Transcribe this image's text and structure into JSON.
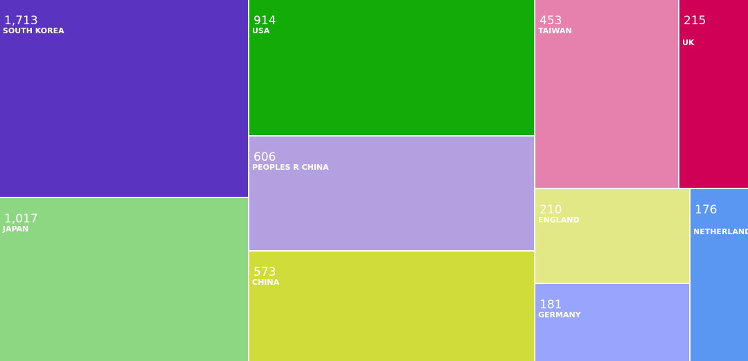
{
  "chart_data": {
    "type": "treemap",
    "categories": [
      "SOUTH KOREA",
      "JAPAN",
      "USA",
      "PEOPLES R CHINA",
      "CHINA",
      "TAIWAN",
      "UK",
      "ENGLAND",
      "GERMANY",
      "NETHERLANDS"
    ],
    "values": [
      1713,
      1017,
      914,
      606,
      573,
      453,
      215,
      210,
      181,
      176
    ],
    "value_labels": [
      "1,713",
      "1,017",
      "914",
      "606",
      "573",
      "453",
      "215",
      "210",
      "181",
      "176"
    ],
    "colors": [
      "#5b33c1",
      "#8dd783",
      "#13ab07",
      "#b3a0e1",
      "#cfdc3a",
      "#e681ad",
      "#cf0056",
      "#e2e886",
      "#97a6fc",
      "#5997f3"
    ]
  }
}
